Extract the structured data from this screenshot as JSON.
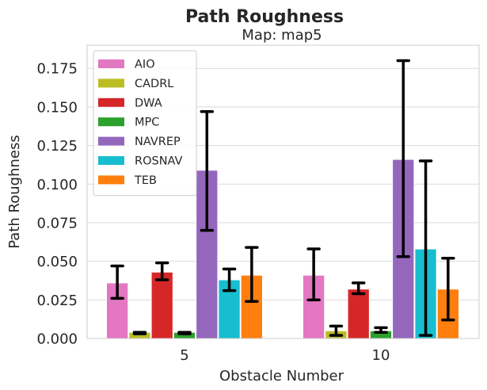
{
  "chart_data": {
    "type": "bar",
    "title": "Path Roughness",
    "subtitle": "Map: map5",
    "xlabel": "Obstacle Number",
    "ylabel": "Path Roughness",
    "categories": [
      "5",
      "10"
    ],
    "ylim": [
      0,
      0.19
    ],
    "yticks": [
      "0.000",
      "0.025",
      "0.050",
      "0.075",
      "0.100",
      "0.125",
      "0.150",
      "0.175"
    ],
    "grid": true,
    "legend_position": "top-left",
    "series": [
      {
        "name": "AIO",
        "color": "#e377c2",
        "values": [
          0.036,
          0.041
        ],
        "err_low": [
          0.026,
          0.025
        ],
        "err_high": [
          0.047,
          0.058
        ]
      },
      {
        "name": "CADRL",
        "color": "#bcbd22",
        "values": [
          0.004,
          0.005
        ],
        "err_low": [
          0.003,
          0.002
        ],
        "err_high": [
          0.004,
          0.008
        ]
      },
      {
        "name": "DWA",
        "color": "#d62728",
        "values": [
          0.043,
          0.032
        ],
        "err_low": [
          0.038,
          0.029
        ],
        "err_high": [
          0.049,
          0.036
        ]
      },
      {
        "name": "MPC",
        "color": "#2ca02c",
        "values": [
          0.004,
          0.005
        ],
        "err_low": [
          0.003,
          0.004
        ],
        "err_high": [
          0.004,
          0.007
        ]
      },
      {
        "name": "NAVREP",
        "color": "#9467bd",
        "values": [
          0.109,
          0.116
        ],
        "err_low": [
          0.07,
          0.053
        ],
        "err_high": [
          0.147,
          0.18
        ]
      },
      {
        "name": "ROSNAV",
        "color": "#17becf",
        "values": [
          0.038,
          0.058
        ],
        "err_low": [
          0.031,
          0.002
        ],
        "err_high": [
          0.045,
          0.115
        ]
      },
      {
        "name": "TEB",
        "color": "#ff7f0e",
        "values": [
          0.041,
          0.032
        ],
        "err_low": [
          0.024,
          0.012
        ],
        "err_high": [
          0.059,
          0.052
        ]
      }
    ]
  }
}
